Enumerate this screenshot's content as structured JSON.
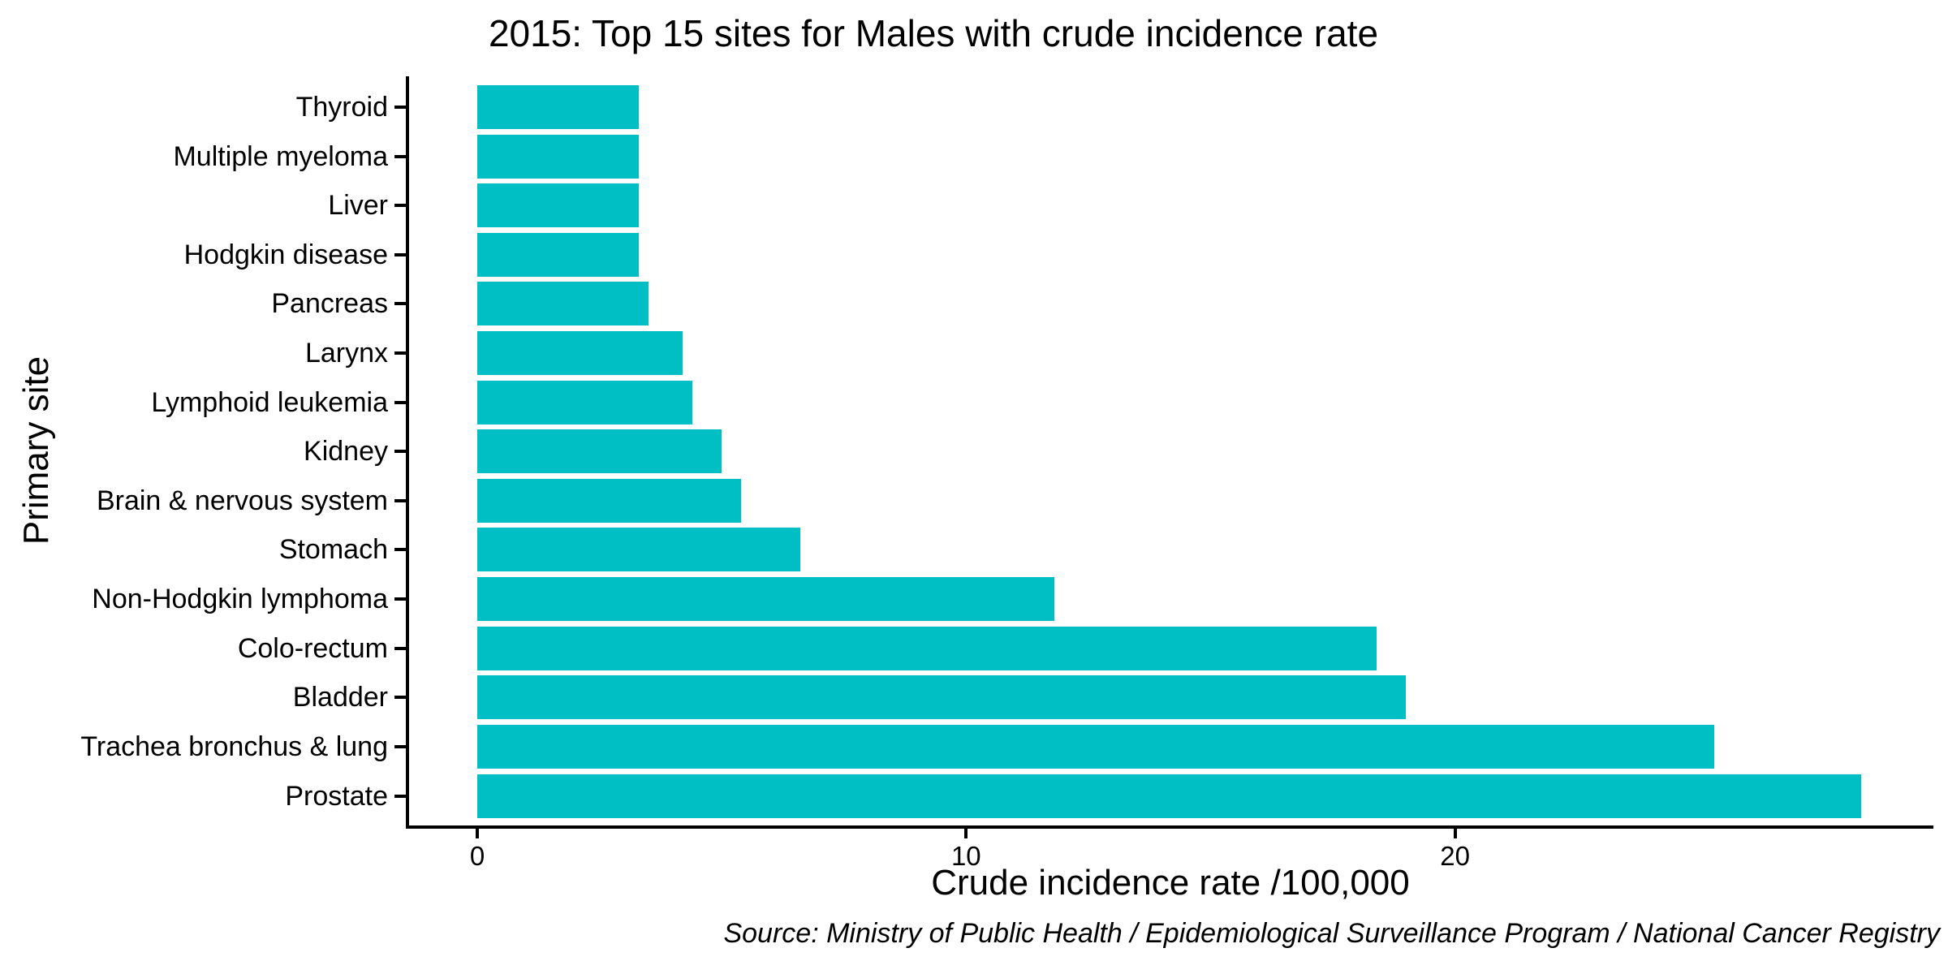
{
  "chart_data": {
    "type": "bar",
    "orientation": "horizontal",
    "title": "2015: Top 15 sites for Males with crude incidence rate",
    "xlabel": "Crude incidence rate /100,000",
    "ylabel": "Primary site",
    "source_note": "Source: Ministry of Public Health / Epidemiological Surveillance Program / National Cancer Registry",
    "bar_color": "#00BFC4",
    "axis_color": "#000000",
    "text_color": "#000000",
    "background_color": "#FFFFFF",
    "grid": false,
    "legend": "none",
    "categories": [
      "Thyroid",
      "Multiple myeloma",
      "Liver",
      "Hodgkin disease",
      "Pancreas",
      "Larynx",
      "Lymphoid leukemia",
      "Kidney",
      "Brain & nervous system",
      "Stomach",
      "Non-Hodgkin lymphoma",
      "Colo-rectum",
      "Bladder",
      "Trachea bronchus & lung",
      "Prostate"
    ],
    "values": [
      3.3,
      3.3,
      3.3,
      3.3,
      3.5,
      4.2,
      4.4,
      5.0,
      5.4,
      6.6,
      11.8,
      18.4,
      19.0,
      25.3,
      28.3
    ],
    "x_ticks": [
      0,
      10,
      20
    ],
    "xlim": [
      0,
      29.8
    ]
  }
}
